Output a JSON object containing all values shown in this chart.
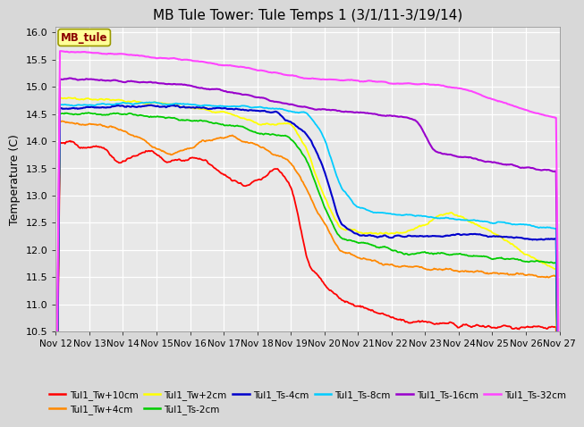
{
  "title": "MB Tule Tower: Tule Temps 1 (3/1/11-3/19/14)",
  "ylabel": "Temperature (C)",
  "ylim": [
    10.5,
    16.1
  ],
  "yticks": [
    10.5,
    11.0,
    11.5,
    12.0,
    12.5,
    13.0,
    13.5,
    14.0,
    14.5,
    15.0,
    15.5,
    16.0
  ],
  "n_points": 600,
  "xlabel_ticks": [
    "Nov 12",
    "Nov 13",
    "Nov 14",
    "Nov 15",
    "Nov 16",
    "Nov 17",
    "Nov 18",
    "Nov 19",
    "Nov 20",
    "Nov 21",
    "Nov 22",
    "Nov 23",
    "Nov 24",
    "Nov 25",
    "Nov 26",
    "Nov 27"
  ],
  "legend_label": "MB_tule",
  "series": [
    {
      "label": "Tul1_Tw+10cm",
      "color": "#ff0000"
    },
    {
      "label": "Tul1_Tw+4cm",
      "color": "#ff8800"
    },
    {
      "label": "Tul1_Tw+2cm",
      "color": "#ffff00"
    },
    {
      "label": "Tul1_Ts-2cm",
      "color": "#00cc00"
    },
    {
      "label": "Tul1_Ts-4cm",
      "color": "#0000cc"
    },
    {
      "label": "Tul1_Ts-8cm",
      "color": "#00ccff"
    },
    {
      "label": "Tul1_Ts-16cm",
      "color": "#9900cc"
    },
    {
      "label": "Tul1_Ts-32cm",
      "color": "#ff44ff"
    }
  ],
  "background_color": "#d8d8d8",
  "plot_bg_color": "#e8e8e8"
}
